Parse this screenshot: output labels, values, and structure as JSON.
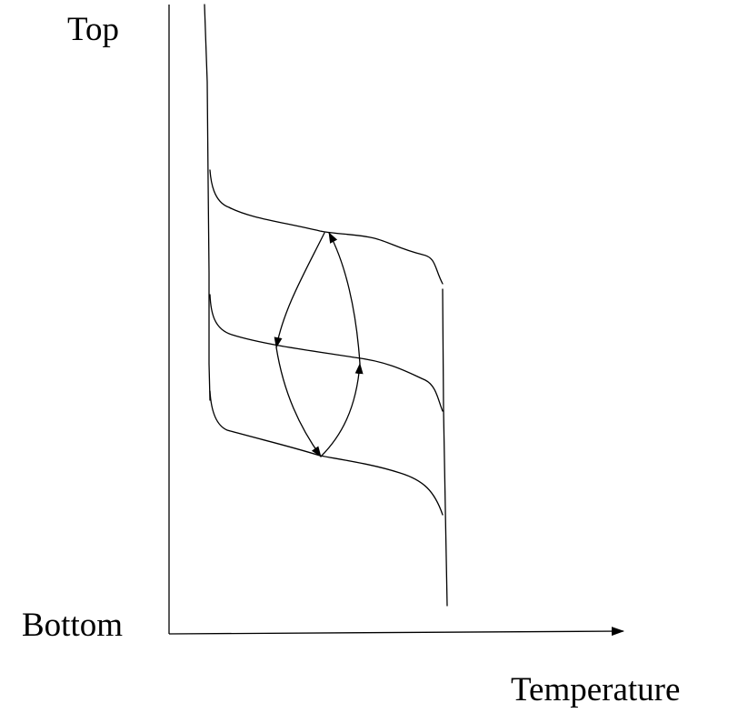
{
  "labels": {
    "y_top": "Top",
    "y_bottom": "Bottom",
    "x_axis": "Temperature"
  },
  "colors": {
    "ink": "#000000",
    "background": "#ffffff"
  }
}
